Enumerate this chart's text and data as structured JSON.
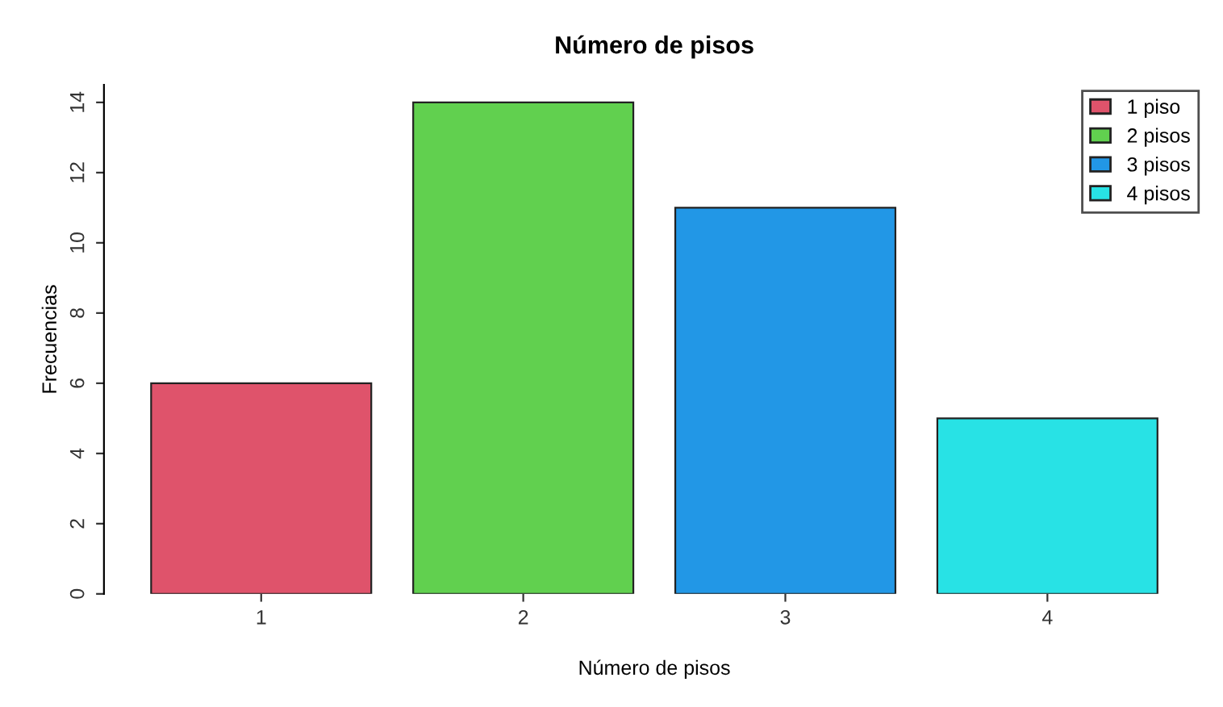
{
  "chart_data": {
    "type": "bar",
    "title": "Número de pisos",
    "xlabel": "Número de pisos",
    "ylabel": "Frecuencias",
    "categories": [
      "1",
      "2",
      "3",
      "4"
    ],
    "series": [
      {
        "name": "1 piso",
        "color": "#df536b",
        "values": [
          6,
          null,
          null,
          null
        ]
      },
      {
        "name": "2 pisos",
        "color": "#61d04f",
        "values": [
          null,
          14,
          null,
          null
        ]
      },
      {
        "name": "3 pisos",
        "color": "#2297e6",
        "values": [
          null,
          null,
          11,
          null
        ]
      },
      {
        "name": "4 pisos",
        "color": "#28e2e5",
        "values": [
          null,
          null,
          null,
          5
        ]
      }
    ],
    "stacked": true,
    "ylim": [
      0,
      14.5
    ],
    "yticks": [
      0,
      2,
      4,
      6,
      8,
      10,
      12,
      14
    ],
    "grid": false,
    "legend": "top right"
  }
}
